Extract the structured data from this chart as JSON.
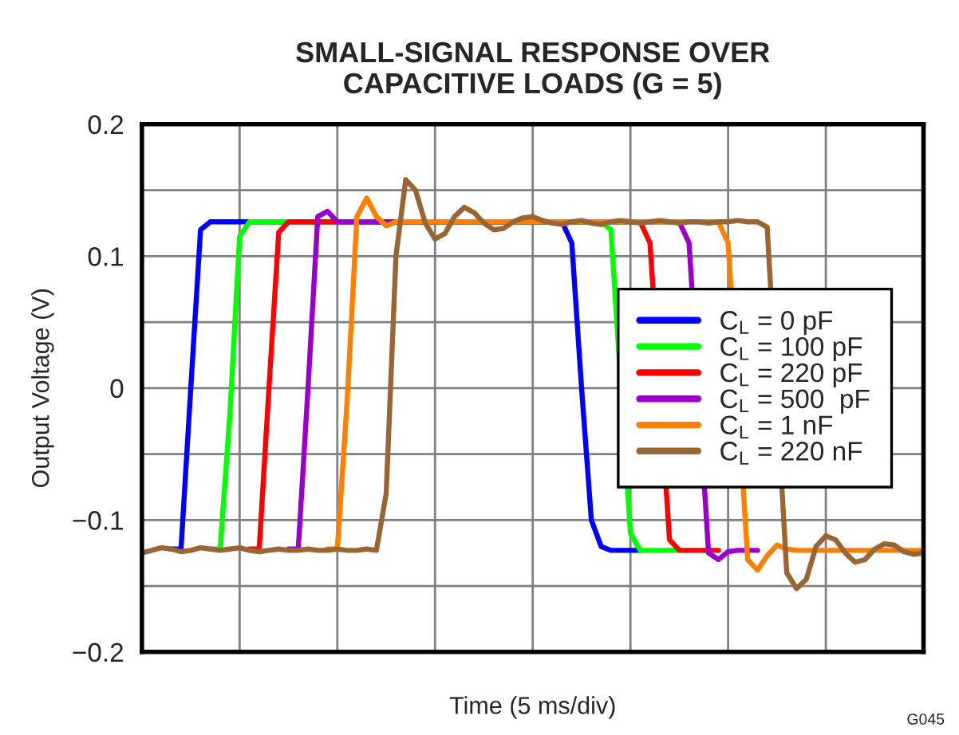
{
  "chart_data": {
    "type": "line",
    "title": "SMALL-SIGNAL RESPONSE OVER\nCAPACITIVE LOADS (G = 5)",
    "xlabel": "Time (5 ms/div)",
    "ylabel": "Output Voltage (V)",
    "annotations": [
      "G045"
    ],
    "categories": [
      null,
      null,
      null,
      null,
      null,
      null,
      null,
      null,
      null,
      null,
      null,
      null,
      null,
      null,
      null,
      null,
      null,
      null,
      null,
      null,
      null,
      null,
      null,
      null,
      null,
      null,
      null,
      null,
      null,
      null,
      null,
      null,
      null,
      null,
      null,
      null,
      null,
      null,
      null,
      null,
      null,
      null,
      null,
      null,
      null,
      null,
      null,
      null,
      null,
      null,
      null,
      null,
      null,
      null,
      null,
      null,
      null,
      null,
      null,
      null,
      null,
      null,
      null,
      null,
      null,
      null,
      null,
      null,
      null,
      null,
      null,
      null,
      null,
      null,
      null,
      null,
      null,
      null,
      null,
      null,
      null
    ],
    "ylim": [
      -0.2,
      0.2
    ],
    "yticks": [
      {
        "value": -0.2,
        "label": "−0.2"
      },
      {
        "value": -0.15,
        "label": null
      },
      {
        "value": -0.1,
        "label": "−0.1"
      },
      {
        "value": -0.05,
        "label": null
      },
      0,
      {
        "value": 0.05,
        "label": null
      },
      0.1,
      {
        "value": 0.15,
        "label": null
      },
      0.2
    ],
    "grid": true,
    "legend": "right",
    "marker": "none",
    "line_style": "solid",
    "series": [
      {
        "name": "C$_{L}$ = 0 pF",
        "color": "#0000ff",
        "values": [
          null,
          null,
          null,
          -0.122,
          -0.122,
          0.0,
          0.12,
          0.126,
          0.126,
          0.126,
          0.126,
          0.126,
          null,
          null,
          null,
          null,
          null,
          null,
          null,
          null,
          null,
          null,
          null,
          null,
          null,
          null,
          null,
          null,
          null,
          null,
          null,
          null,
          null,
          null,
          null,
          null,
          null,
          null,
          null,
          null,
          null,
          null,
          null,
          0.126,
          0.11,
          0.0,
          -0.1,
          -0.12,
          -0.123,
          -0.123,
          -0.123,
          -0.123,
          null,
          null,
          null,
          null,
          null,
          null,
          null,
          null,
          null,
          null,
          null,
          null,
          null,
          null,
          null,
          null,
          null,
          null,
          null,
          null,
          null,
          null,
          null,
          null,
          null,
          null,
          null,
          null,
          null
        ]
      },
      {
        "name": "C$_{L}$ = 100 pF",
        "color": "#00ff00",
        "values": [
          null,
          null,
          null,
          null,
          null,
          null,
          null,
          -0.122,
          -0.122,
          -0.02,
          0.115,
          0.126,
          0.126,
          0.126,
          0.126,
          0.126,
          null,
          null,
          null,
          null,
          null,
          null,
          null,
          null,
          null,
          null,
          null,
          null,
          null,
          null,
          null,
          null,
          null,
          null,
          null,
          null,
          null,
          null,
          null,
          null,
          null,
          null,
          null,
          null,
          null,
          null,
          null,
          0.126,
          0.12,
          null,
          -0.11,
          -0.123,
          -0.123,
          -0.123,
          -0.123,
          -0.123,
          null,
          null,
          null,
          null,
          null,
          null,
          null,
          null,
          null,
          null,
          null,
          null,
          null,
          null,
          null,
          null,
          null,
          null,
          null,
          null,
          null,
          null,
          null,
          null,
          null
        ]
      },
      {
        "name": "C$_{L}$ = 220 pF",
        "color": "#ff0000",
        "values": [
          null,
          null,
          null,
          null,
          null,
          null,
          null,
          null,
          null,
          null,
          null,
          -0.122,
          -0.122,
          0.0,
          0.118,
          0.126,
          0.126,
          0.126,
          0.126,
          0.126,
          null,
          null,
          null,
          null,
          null,
          null,
          null,
          null,
          null,
          null,
          null,
          null,
          null,
          null,
          null,
          null,
          null,
          null,
          null,
          null,
          null,
          null,
          null,
          null,
          null,
          null,
          null,
          null,
          null,
          null,
          null,
          0.126,
          0.11,
          null,
          -0.115,
          -0.123,
          -0.123,
          -0.123,
          -0.123,
          -0.123,
          null,
          null,
          null,
          null,
          null,
          null,
          null,
          null,
          null,
          null,
          null,
          null,
          null,
          null,
          null,
          null,
          null,
          null,
          null,
          null,
          null
        ]
      },
      {
        "name": "C$_{L}$ = 500  pF",
        "color": "#9900cc",
        "values": [
          null,
          null,
          null,
          null,
          null,
          null,
          null,
          null,
          null,
          null,
          null,
          null,
          null,
          null,
          null,
          -0.122,
          -0.122,
          0.0,
          0.13,
          0.134,
          0.126,
          0.126,
          0.126,
          0.126,
          null,
          null,
          null,
          null,
          null,
          null,
          null,
          null,
          null,
          null,
          null,
          null,
          null,
          null,
          null,
          null,
          null,
          null,
          null,
          null,
          null,
          null,
          null,
          null,
          null,
          null,
          null,
          null,
          null,
          null,
          null,
          0.126,
          0.11,
          null,
          -0.125,
          -0.13,
          -0.124,
          -0.123,
          -0.123,
          -0.123,
          null,
          null,
          null,
          null,
          null,
          null,
          null,
          null,
          null,
          null,
          null,
          null,
          null,
          null,
          null,
          null,
          null
        ]
      },
      {
        "name": "C$_{L}$ = 1 nF",
        "color": "#ff8000",
        "values": [
          null,
          null,
          null,
          null,
          null,
          null,
          null,
          null,
          null,
          null,
          null,
          null,
          null,
          null,
          null,
          null,
          null,
          null,
          null,
          -0.122,
          -0.122,
          -0.01,
          0.13,
          0.144,
          0.13,
          0.123,
          0.126,
          0.126,
          0.126,
          0.126,
          0.126,
          0.126,
          0.126,
          0.126,
          0.126,
          0.126,
          0.126,
          0.126,
          0.126,
          0.126,
          0.126,
          0.126,
          null,
          null,
          null,
          null,
          null,
          null,
          null,
          null,
          null,
          null,
          null,
          null,
          null,
          null,
          null,
          null,
          null,
          0.126,
          0.11,
          null,
          -0.13,
          -0.138,
          -0.127,
          -0.119,
          -0.122,
          -0.123,
          -0.123,
          -0.123,
          -0.123,
          -0.123,
          -0.123,
          -0.123,
          -0.123,
          -0.123,
          -0.123,
          -0.123,
          -0.123,
          -0.123,
          -0.123
        ]
      },
      {
        "name": "C$_{L}$ = 220 nF",
        "color": "#996633",
        "values": [
          -0.125,
          -0.123,
          -0.121,
          -0.122,
          -0.124,
          -0.123,
          -0.121,
          -0.122,
          -0.123,
          -0.122,
          -0.121,
          -0.123,
          -0.124,
          -0.123,
          -0.122,
          -0.123,
          -0.123,
          -0.122,
          -0.123,
          -0.123,
          -0.122,
          -0.123,
          -0.123,
          -0.122,
          -0.123,
          -0.08,
          0.1,
          0.158,
          0.15,
          0.125,
          0.113,
          0.117,
          0.13,
          0.137,
          0.133,
          0.125,
          0.12,
          0.121,
          0.126,
          0.129,
          0.13,
          0.127,
          0.125,
          0.124,
          0.126,
          0.127,
          0.125,
          0.124,
          0.126,
          0.127,
          0.126,
          0.125,
          0.126,
          0.127,
          0.126,
          0.125,
          0.126,
          0.126,
          0.125,
          0.126,
          0.126,
          0.127,
          0.126,
          0.126,
          0.122,
          null,
          -0.14,
          -0.152,
          -0.145,
          -0.12,
          -0.112,
          -0.115,
          -0.125,
          -0.132,
          -0.13,
          -0.122,
          -0.118,
          -0.119,
          -0.124,
          -0.126,
          -0.125
        ]
      }
    ]
  }
}
